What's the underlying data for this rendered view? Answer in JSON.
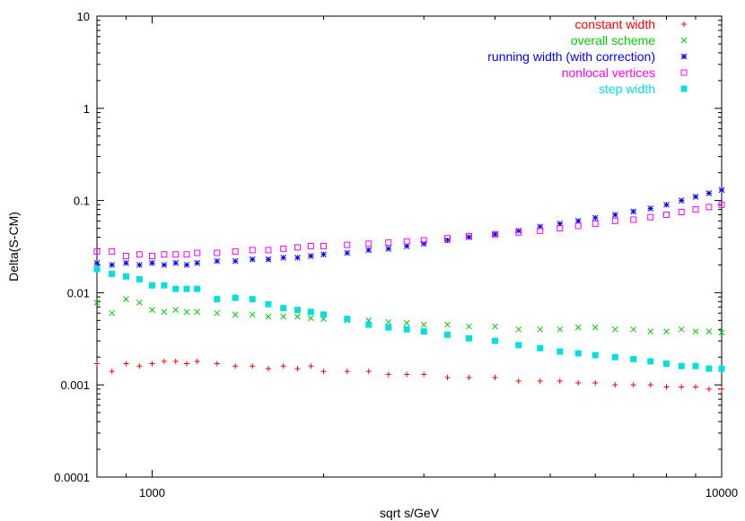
{
  "chart_data": {
    "type": "scatter",
    "title": "",
    "xlabel": "sqrt s/GeV",
    "ylabel": "Delta(S-CM)",
    "xscale": "log",
    "yscale": "log",
    "xlim": [
      800,
      10000
    ],
    "ylim": [
      0.0001,
      10
    ],
    "grid": false,
    "legend_position": "top-right",
    "x_ticks": [
      {
        "value": 1000,
        "label": "1000"
      },
      {
        "value": 10000,
        "label": "10000"
      }
    ],
    "y_ticks": [
      {
        "value": 0.0001,
        "label": "0.0001"
      },
      {
        "value": 0.001,
        "label": "0.001"
      },
      {
        "value": 0.01,
        "label": "0.01"
      },
      {
        "value": 0.1,
        "label": "0.1"
      },
      {
        "value": 1,
        "label": "1"
      },
      {
        "value": 10,
        "label": "10"
      }
    ],
    "series": [
      {
        "name": "constant width",
        "color": "#ff0000",
        "marker": "plus",
        "x": [
          800,
          850,
          900,
          950,
          1000,
          1050,
          1100,
          1150,
          1200,
          1300,
          1400,
          1500,
          1600,
          1700,
          1800,
          1900,
          2000,
          2200,
          2400,
          2600,
          2800,
          3000,
          3300,
          3600,
          4000,
          4400,
          4800,
          5200,
          5600,
          6000,
          6500,
          7000,
          7500,
          8000,
          8500,
          9000,
          9500,
          10000
        ],
        "y": [
          0.0017,
          0.0014,
          0.0017,
          0.0016,
          0.0017,
          0.0018,
          0.0018,
          0.0017,
          0.0018,
          0.0017,
          0.0016,
          0.0016,
          0.0015,
          0.0016,
          0.0015,
          0.0016,
          0.0014,
          0.0014,
          0.0014,
          0.0013,
          0.0013,
          0.0013,
          0.0012,
          0.0012,
          0.0012,
          0.0011,
          0.0011,
          0.0011,
          0.00105,
          0.00105,
          0.001,
          0.001,
          0.001,
          0.00095,
          0.00095,
          0.00095,
          0.0009,
          0.0009
        ]
      },
      {
        "name": "overall scheme",
        "color": "#00d000",
        "marker": "cross",
        "x": [
          800,
          850,
          900,
          950,
          1000,
          1050,
          1100,
          1150,
          1200,
          1300,
          1400,
          1500,
          1600,
          1700,
          1800,
          1900,
          2000,
          2200,
          2400,
          2600,
          2800,
          3000,
          3300,
          3600,
          4000,
          4400,
          4800,
          5200,
          5600,
          6000,
          6500,
          7000,
          7500,
          8000,
          8500,
          9000,
          9500,
          10000
        ],
        "y": [
          0.0078,
          0.006,
          0.0085,
          0.0078,
          0.0065,
          0.0062,
          0.0065,
          0.0062,
          0.0062,
          0.006,
          0.0058,
          0.0058,
          0.0055,
          0.0055,
          0.0055,
          0.0053,
          0.0052,
          0.005,
          0.005,
          0.0048,
          0.0047,
          0.0045,
          0.0045,
          0.0043,
          0.0043,
          0.004,
          0.004,
          0.004,
          0.0042,
          0.0042,
          0.004,
          0.004,
          0.0038,
          0.0038,
          0.004,
          0.0038,
          0.0038,
          0.0037
        ]
      },
      {
        "name": "running width (with correction)",
        "color": "#0000ff",
        "marker": "star",
        "x": [
          800,
          850,
          900,
          950,
          1000,
          1050,
          1100,
          1150,
          1200,
          1300,
          1400,
          1500,
          1600,
          1700,
          1800,
          1900,
          2000,
          2200,
          2400,
          2600,
          2800,
          3000,
          3300,
          3600,
          4000,
          4400,
          4800,
          5200,
          5600,
          6000,
          6500,
          7000,
          7500,
          8000,
          8500,
          9000,
          9500,
          10000
        ],
        "y": [
          0.021,
          0.02,
          0.021,
          0.02,
          0.021,
          0.02,
          0.021,
          0.02,
          0.021,
          0.022,
          0.022,
          0.023,
          0.023,
          0.024,
          0.024,
          0.025,
          0.026,
          0.027,
          0.029,
          0.03,
          0.032,
          0.034,
          0.037,
          0.04,
          0.043,
          0.047,
          0.052,
          0.056,
          0.06,
          0.065,
          0.07,
          0.076,
          0.082,
          0.09,
          0.1,
          0.11,
          0.12,
          0.13
        ]
      },
      {
        "name": "nonlocal vertices",
        "color": "#ff00ff",
        "marker": "square-open",
        "x": [
          800,
          850,
          900,
          950,
          1000,
          1050,
          1100,
          1150,
          1200,
          1300,
          1400,
          1500,
          1600,
          1700,
          1800,
          1900,
          2000,
          2200,
          2400,
          2600,
          2800,
          3000,
          3300,
          3600,
          4000,
          4400,
          4800,
          5200,
          5600,
          6000,
          6500,
          7000,
          7500,
          8000,
          8500,
          9000,
          9500,
          10000
        ],
        "y": [
          0.028,
          0.028,
          0.025,
          0.026,
          0.025,
          0.026,
          0.026,
          0.026,
          0.027,
          0.027,
          0.028,
          0.029,
          0.029,
          0.03,
          0.031,
          0.032,
          0.032,
          0.033,
          0.034,
          0.035,
          0.036,
          0.037,
          0.039,
          0.041,
          0.043,
          0.045,
          0.047,
          0.05,
          0.053,
          0.056,
          0.06,
          0.062,
          0.066,
          0.07,
          0.075,
          0.08,
          0.085,
          0.09
        ]
      },
      {
        "name": "step width",
        "color": "#00e0e0",
        "marker": "square-filled",
        "x": [
          800,
          850,
          900,
          950,
          1000,
          1050,
          1100,
          1150,
          1200,
          1300,
          1400,
          1500,
          1600,
          1700,
          1800,
          1900,
          2000,
          2200,
          2400,
          2600,
          2800,
          3000,
          3300,
          3600,
          4000,
          4400,
          4800,
          5200,
          5600,
          6000,
          6500,
          7000,
          7500,
          8000,
          8500,
          9000,
          9500,
          10000
        ],
        "y": [
          0.018,
          0.016,
          0.015,
          0.014,
          0.012,
          0.012,
          0.011,
          0.011,
          0.011,
          0.0085,
          0.0088,
          0.0085,
          0.0075,
          0.0068,
          0.0065,
          0.0062,
          0.0058,
          0.0052,
          0.0045,
          0.0042,
          0.004,
          0.0038,
          0.0035,
          0.0032,
          0.003,
          0.0027,
          0.0025,
          0.0023,
          0.0022,
          0.0021,
          0.002,
          0.0019,
          0.0018,
          0.0017,
          0.0016,
          0.0016,
          0.0015,
          0.0015
        ]
      }
    ]
  }
}
